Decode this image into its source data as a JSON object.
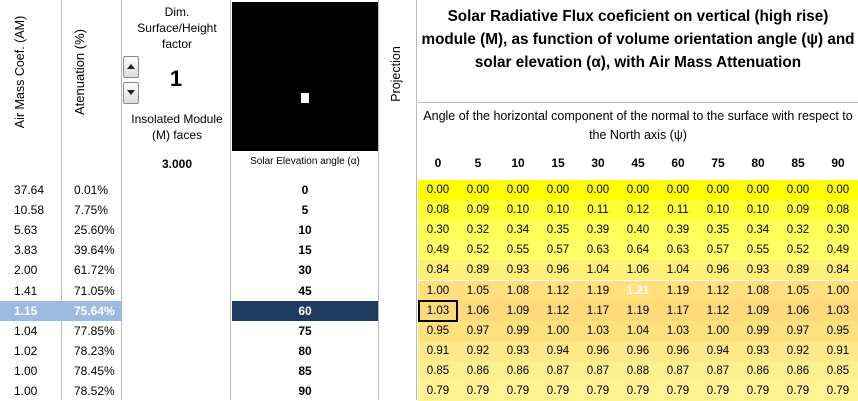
{
  "headers": {
    "am": "Air Mass Coef. (AM)",
    "att": "Atenuation (%)",
    "dim": "Dim. Surface/Height factor",
    "dim_value": "1",
    "insolated": "Insolated Module (M) faces",
    "faces_value": "3.000",
    "elev_label": "Solar Elevation angle (α)",
    "projection": "Projection",
    "title": "Solar Radiative Flux  coeficient on vertical (high rise) module (M), as function of volume orientation angle (ψ) and solar elevation  (α), with Air Mass Attenuation",
    "subtitle": "Angle of the horizontal component of the normal to the surface with respect to the North axis (ψ)"
  },
  "psi": [
    "0",
    "5",
    "10",
    "15",
    "30",
    "45",
    "60",
    "75",
    "80",
    "85",
    "90"
  ],
  "rows": [
    {
      "am": "37.64",
      "att": "0.01%",
      "elev": "0",
      "vals": [
        "0.00",
        "0.00",
        "0.00",
        "0.00",
        "0.00",
        "0.00",
        "0.00",
        "0.00",
        "0.00",
        "0.00",
        "0.00"
      ]
    },
    {
      "am": "10.58",
      "att": "7.75%",
      "elev": "5",
      "vals": [
        "0.08",
        "0.09",
        "0.10",
        "0.10",
        "0.11",
        "0.12",
        "0.11",
        "0.10",
        "0.10",
        "0.09",
        "0.08"
      ]
    },
    {
      "am": "5.63",
      "att": "25.60%",
      "elev": "10",
      "vals": [
        "0.30",
        "0.32",
        "0.34",
        "0.35",
        "0.39",
        "0.40",
        "0.39",
        "0.35",
        "0.34",
        "0.32",
        "0.30"
      ]
    },
    {
      "am": "3.83",
      "att": "39.64%",
      "elev": "15",
      "vals": [
        "0.49",
        "0.52",
        "0.55",
        "0.57",
        "0.63",
        "0.64",
        "0.63",
        "0.57",
        "0.55",
        "0.52",
        "0.49"
      ]
    },
    {
      "am": "2.00",
      "att": "61.72%",
      "elev": "30",
      "vals": [
        "0.84",
        "0.89",
        "0.93",
        "0.96",
        "1.04",
        "1.06",
        "1.04",
        "0.96",
        "0.93",
        "0.89",
        "0.84"
      ]
    },
    {
      "am": "1.41",
      "att": "71.05%",
      "elev": "45",
      "vals": [
        "1.00",
        "1.05",
        "1.08",
        "1.12",
        "1.19",
        "1.21",
        "1.19",
        "1.12",
        "1.08",
        "1.05",
        "1.00"
      ]
    },
    {
      "am": "1.15",
      "att": "75.64%",
      "elev": "60",
      "vals": [
        "1.03",
        "1.06",
        "1.09",
        "1.12",
        "1.17",
        "1.19",
        "1.17",
        "1.12",
        "1.09",
        "1.06",
        "1.03"
      ]
    },
    {
      "am": "1.04",
      "att": "77.85%",
      "elev": "75",
      "vals": [
        "0.95",
        "0.97",
        "0.99",
        "1.00",
        "1.03",
        "1.04",
        "1.03",
        "1.00",
        "0.99",
        "0.97",
        "0.95"
      ]
    },
    {
      "am": "1.02",
      "att": "78.23%",
      "elev": "80",
      "vals": [
        "0.91",
        "0.92",
        "0.93",
        "0.94",
        "0.96",
        "0.96",
        "0.96",
        "0.94",
        "0.93",
        "0.92",
        "0.91"
      ]
    },
    {
      "am": "1.00",
      "att": "78.45%",
      "elev": "85",
      "vals": [
        "0.85",
        "0.86",
        "0.86",
        "0.87",
        "0.87",
        "0.88",
        "0.87",
        "0.87",
        "0.86",
        "0.86",
        "0.85"
      ]
    },
    {
      "am": "1.00",
      "att": "78.52%",
      "elev": "90",
      "vals": [
        "0.79",
        "0.79",
        "0.79",
        "0.79",
        "0.79",
        "0.79",
        "0.79",
        "0.79",
        "0.79",
        "0.79",
        "0.79"
      ]
    }
  ],
  "selected_row": 5,
  "band_colors": [
    "#ffff00",
    "#ffff33",
    "#ffff55",
    "#ffff66",
    "#fff07a",
    "#ffe07c",
    "#ffd97a",
    "#fde17c",
    "#fde88a",
    "#fff08f",
    "#fff394"
  ],
  "selected_am_bg": "#9dbbe0",
  "selected_elev_bg": "#1f3a5f",
  "peak_color": "#ffffff"
}
